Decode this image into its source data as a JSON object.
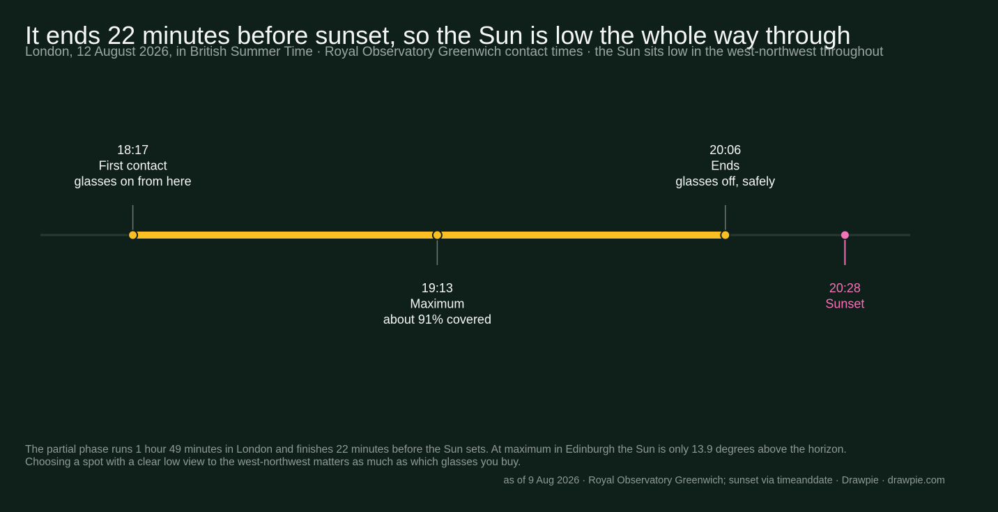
{
  "title": "It ends 22 minutes before sunset, so the Sun is low the whole way through",
  "subtitle": "London, 12 August 2026, in British Summer Time · Royal Observatory Greenwich contact times · the Sun sits low in the west-northwest throughout",
  "chart_data": {
    "type": "timeline",
    "x_unit": "time (BST)",
    "xlim": [
      "18:00",
      "20:40"
    ],
    "events": [
      {
        "time": "18:17",
        "label": "First contact",
        "note": "glasses on from here",
        "side": "above",
        "kind": "eclipse"
      },
      {
        "time": "19:13",
        "label": "Maximum",
        "note": "about 91% covered",
        "side": "below",
        "kind": "eclipse"
      },
      {
        "time": "20:06",
        "label": "Ends",
        "note": "glasses off, safely",
        "side": "above",
        "kind": "eclipse"
      },
      {
        "time": "20:28",
        "label": "Sunset",
        "note": "",
        "side": "below",
        "kind": "sunset"
      }
    ],
    "eclipse_span": [
      "18:17",
      "20:06"
    ]
  },
  "colors": {
    "background": "#0f1f1a",
    "eclipse": "#fbbf24",
    "sunset": "#f472b6",
    "track": "#2a3833",
    "text": "#f4f6f4",
    "muted": "#9aa6a0",
    "stem": "#6d7873"
  },
  "footnote": {
    "line1": "The partial phase runs 1 hour 49 minutes in London and finishes 22 minutes before the Sun sets. At maximum in Edinburgh the Sun is only 13.9 degrees above the horizon.",
    "line2": "Choosing a spot with a clear low view to the west-northwest matters as much as which glasses you buy."
  },
  "source": "as of 9 Aug 2026  ·  Royal Observatory Greenwich; sunset via timeanddate  ·  Drawpie · drawpie.com"
}
